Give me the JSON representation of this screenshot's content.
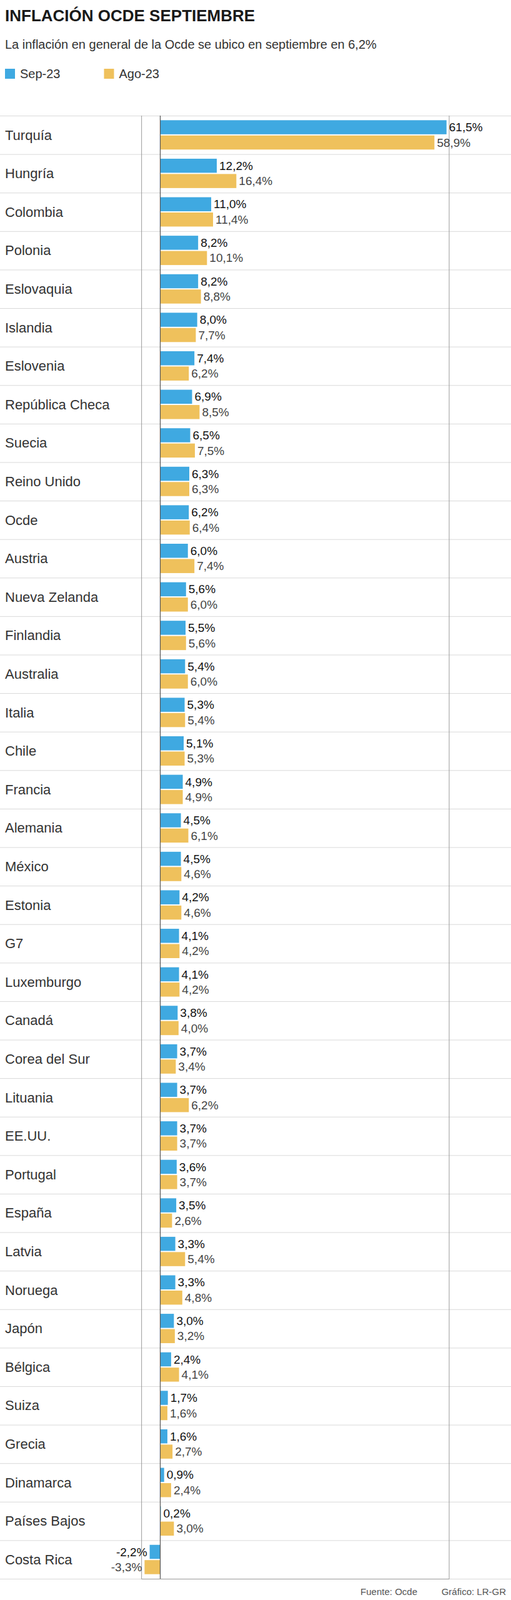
{
  "chart_data": {
    "type": "bar",
    "orientation": "horizontal",
    "title": "INFLACIÓN OCDE SEPTIEMBRE",
    "subtitle": "La inflación en general de la Ocde se ubico en septiembre en 6,2%",
    "categories": [
      "Turquía",
      "Hungría",
      "Colombia",
      "Polonia",
      "Eslovaquia",
      "Islandia",
      "Eslovenia",
      "República Checa",
      "Suecia",
      "Reino Unido",
      "Ocde",
      "Austria",
      "Nueva Zelanda",
      "Finlandia",
      "Australia",
      "Italia",
      "Chile",
      "Francia",
      "Alemania",
      "México",
      "Estonia",
      "G7",
      "Luxemburgo",
      "Canadá",
      "Corea del Sur",
      "Lituania",
      "EE.UU.",
      "Portugal",
      "España",
      "Latvia",
      "Noruega",
      "Japón",
      "Bélgica",
      "Suiza",
      "Grecia",
      "Dinamarca",
      "Países Bajos",
      "Costa Rica"
    ],
    "series": [
      {
        "name": "Sep-23",
        "color": "#3fa9e1",
        "values": [
          61.5,
          12.2,
          11.0,
          8.2,
          8.2,
          8.0,
          7.4,
          6.9,
          6.5,
          6.3,
          6.2,
          6.0,
          5.6,
          5.5,
          5.4,
          5.3,
          5.1,
          4.9,
          4.5,
          4.5,
          4.2,
          4.1,
          4.1,
          3.8,
          3.7,
          3.7,
          3.7,
          3.6,
          3.5,
          3.3,
          3.3,
          3.0,
          2.4,
          1.7,
          1.6,
          0.9,
          0.2,
          -2.2
        ],
        "value_labels": [
          "61,5%",
          "12,2%",
          "11,0%",
          "8,2%",
          "8,2%",
          "8,0%",
          "7,4%",
          "6,9%",
          "6,5%",
          "6,3%",
          "6,2%",
          "6,0%",
          "5,6%",
          "5,5%",
          "5,4%",
          "5,3%",
          "5,1%",
          "4,9%",
          "4,5%",
          "4,5%",
          "4,2%",
          "4,1%",
          "4,1%",
          "3,8%",
          "3,7%",
          "3,7%",
          "3,7%",
          "3,6%",
          "3,5%",
          "3,3%",
          "3,3%",
          "3,0%",
          "2,4%",
          "1,7%",
          "1,6%",
          "0,9%",
          "0,2%",
          "-2,2%"
        ]
      },
      {
        "name": "Ago-23",
        "color": "#efc15c",
        "values": [
          58.9,
          16.4,
          11.4,
          10.1,
          8.8,
          7.7,
          6.2,
          8.5,
          7.5,
          6.3,
          6.4,
          7.4,
          6.0,
          5.6,
          6.0,
          5.4,
          5.3,
          4.9,
          6.1,
          4.6,
          4.6,
          4.2,
          4.2,
          4.0,
          3.4,
          6.2,
          3.7,
          3.7,
          2.6,
          5.4,
          4.8,
          3.2,
          4.1,
          1.6,
          2.7,
          2.4,
          3.0,
          -3.3
        ],
        "value_labels": [
          "58,9%",
          "16,4%",
          "11,4%",
          "10,1%",
          "8,8%",
          "7,7%",
          "6,2%",
          "8,5%",
          "7,5%",
          "6,3%",
          "6,4%",
          "7,4%",
          "6,0%",
          "5,6%",
          "6,0%",
          "5,4%",
          "5,3%",
          "4,9%",
          "6,1%",
          "4,6%",
          "4,6%",
          "4,2%",
          "4,2%",
          "4,0%",
          "3,4%",
          "6,2%",
          "3,7%",
          "3,7%",
          "2,6%",
          "5,4%",
          "4,8%",
          "3,2%",
          "4,1%",
          "1,6%",
          "2,7%",
          "2,4%",
          "3,0%",
          "-3,3%"
        ]
      }
    ],
    "xlim": [
      -4,
      62
    ],
    "xticks": [
      0
    ],
    "tick_labels": false,
    "grid": false,
    "legend": "top-left",
    "data_labels": true,
    "annotations": [
      "Fuente: Ocde",
      "Gráfico: LR-GR"
    ]
  }
}
